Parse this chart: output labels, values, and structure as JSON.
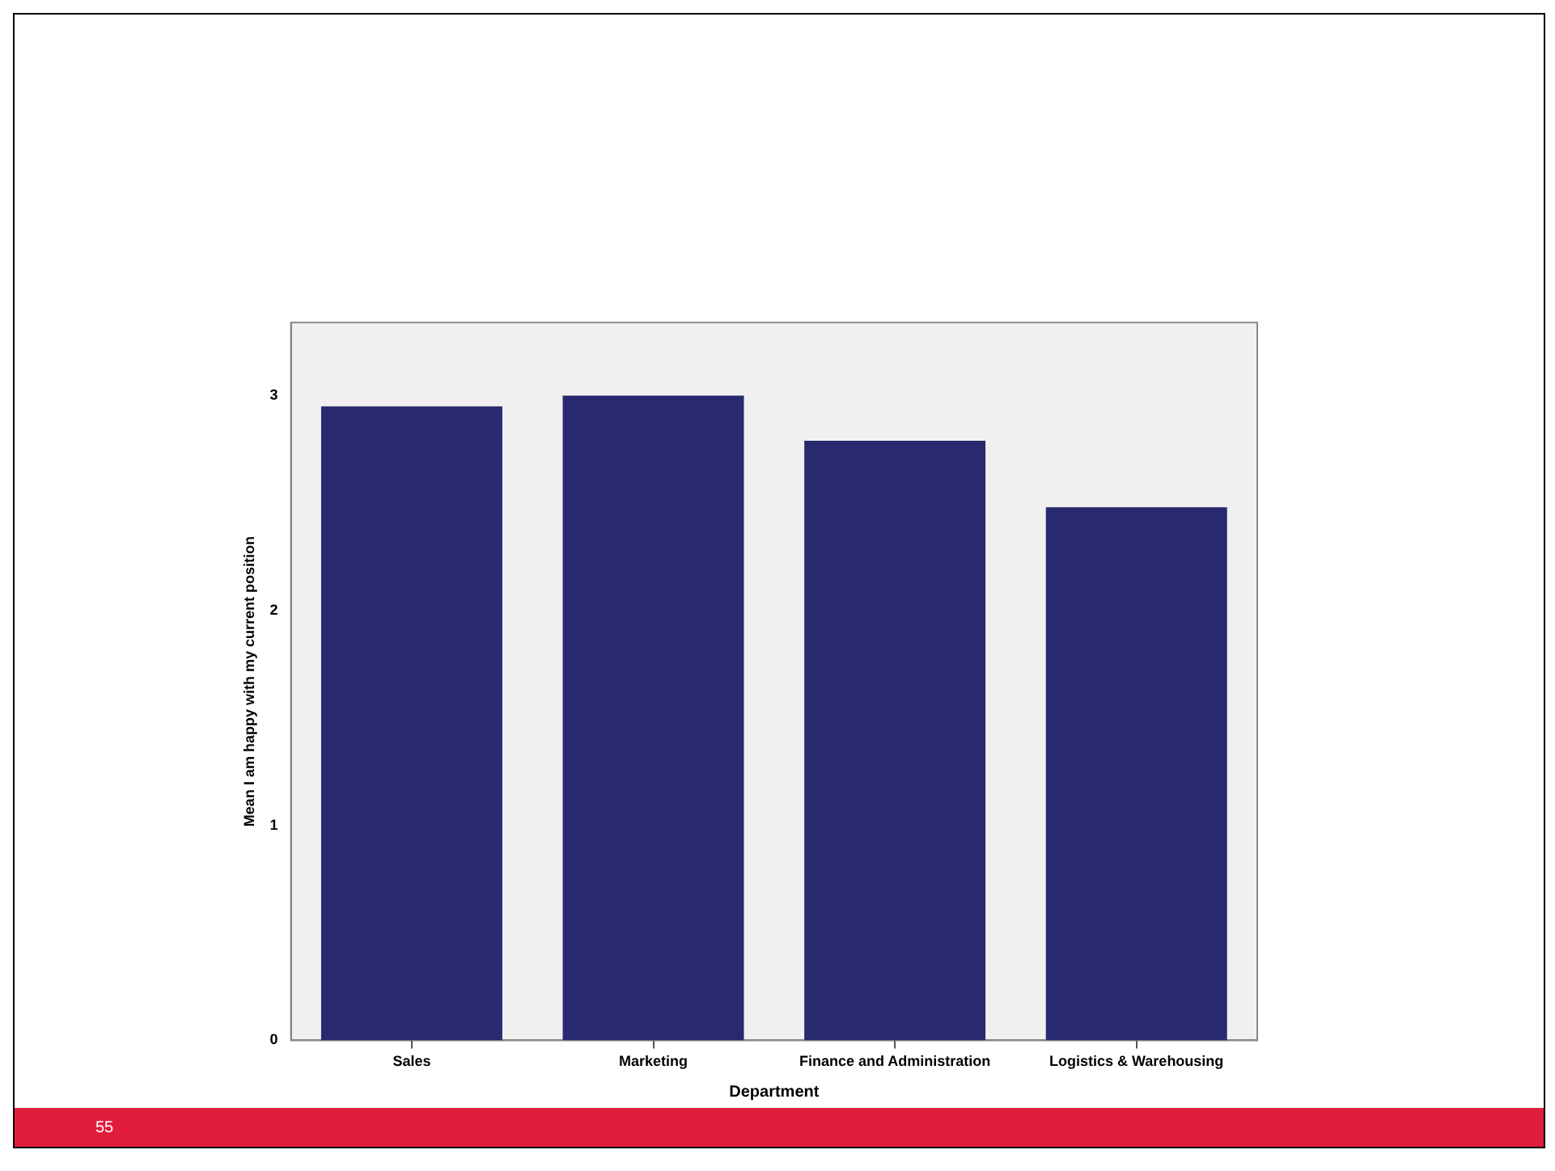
{
  "chart_data": {
    "type": "bar",
    "xlabel": "Department",
    "ylabel": "Mean I am happy with my current position",
    "categories": [
      "Sales",
      "Marketing",
      "Finance and Administration",
      "Logistics & Warehousing"
    ],
    "values": [
      2.95,
      3.0,
      2.79,
      2.48
    ],
    "color": "#29296f",
    "ylim": [
      0,
      3.34
    ],
    "yticks": [
      0,
      1,
      2,
      3
    ],
    "grid": false,
    "legend": false,
    "annotations": [
      "55"
    ]
  }
}
